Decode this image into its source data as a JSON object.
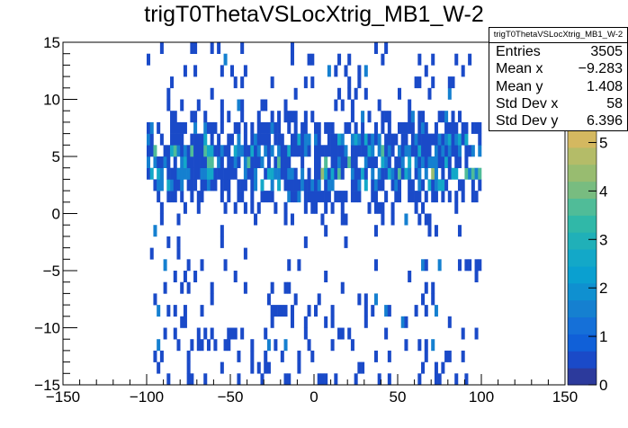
{
  "chart_data": {
    "type": "heatmap",
    "title": "trigT0ThetaVSLocXtrig_MB1_W-2",
    "xlabel": "",
    "ylabel": "",
    "xlim": [
      -150,
      150
    ],
    "ylim": [
      -15,
      15
    ],
    "zlim": [
      0,
      5.25
    ],
    "x_bin_width": 2,
    "y_bin_width": 1,
    "filled_x_range": [
      -100,
      100
    ],
    "x_ticks": [
      -150,
      -100,
      -50,
      0,
      50,
      100,
      150
    ],
    "x_tick_labels": [
      "−150",
      "−100",
      "−50",
      "0",
      "50",
      "100",
      "150"
    ],
    "y_ticks": [
      -15,
      -10,
      -5,
      0,
      5,
      10,
      15
    ],
    "y_tick_labels": [
      "−15",
      "−10",
      "−5",
      "0",
      "5",
      "10",
      "15"
    ],
    "z_ticks": [
      0,
      1,
      2,
      3,
      4,
      5
    ],
    "z_tick_labels": [
      "0",
      "1",
      "2",
      "3",
      "4",
      "5"
    ],
    "row_occupancy_by_y": {
      "-15": 0.25,
      "-14": 0.2,
      "-13": 0.15,
      "-12": 0.2,
      "-11": 0.15,
      "-10": 0.15,
      "-9": 0.12,
      "-8": 0.1,
      "-7": 0.1,
      "-6": 0.08,
      "-5": 0.06,
      "-4": 0.04,
      "-3": 0.05,
      "-2": 0.06,
      "-1": 0.12,
      "0": 0.25,
      "1": 0.55,
      "2": 0.7,
      "3": 0.8,
      "4": 0.85,
      "5": 0.8,
      "6": 0.7,
      "7": 0.6,
      "8": 0.3,
      "9": 0.15,
      "10": 0.1,
      "11": 0.12,
      "12": 0.1,
      "13": 0.1,
      "14": 0.1
    },
    "row_mean_content_by_y": {
      "2": 1.5,
      "3": 2.0,
      "4": 2.0,
      "5": 1.8,
      "6": 1.5
    },
    "palette": [
      "#2c3a9c",
      "#1a4ac8",
      "#1060d8",
      "#1570d8",
      "#1580d0",
      "#0f90d0",
      "#0aa0d0",
      "#13a8c8",
      "#20b0b8",
      "#30b8a8",
      "#50bc98",
      "#78bc80",
      "#98bc70",
      "#b4bc68",
      "#d4b860"
    ],
    "stats": {
      "title": "trigT0ThetaVSLocXtrig_MB1_W-2",
      "rows": [
        {
          "label": "Entries",
          "value": "3505"
        },
        {
          "label": "Mean x",
          "value": "−9.283"
        },
        {
          "label": "Mean y",
          "value": "1.408"
        },
        {
          "label": "Std Dev x",
          "value": "58"
        },
        {
          "label": "Std Dev y",
          "value": "6.396"
        }
      ]
    }
  }
}
